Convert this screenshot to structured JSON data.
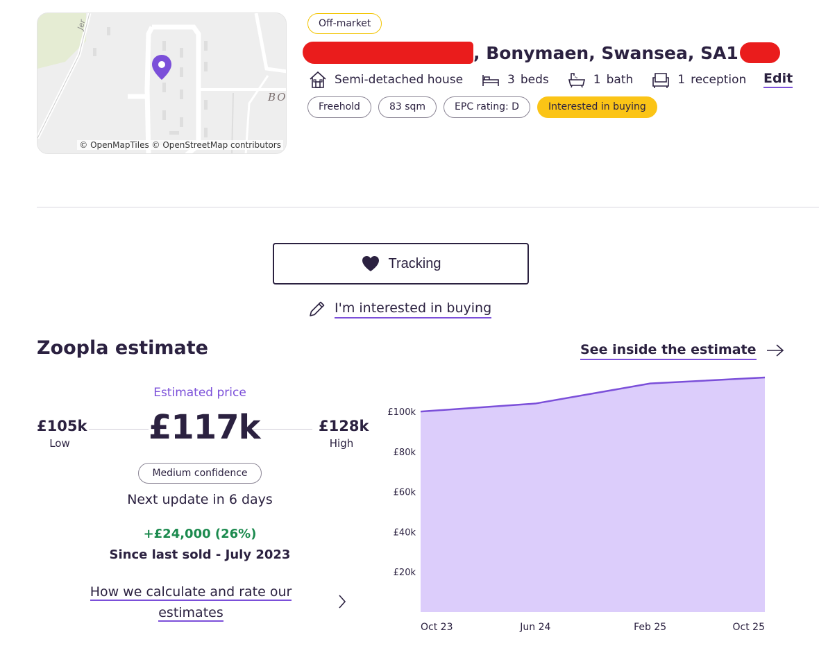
{
  "map": {
    "credit": "© OpenMapTiles © OpenStreetMap contributors",
    "street_label_1": "Jer",
    "street_label_2": "BOI",
    "pin_icon": "map-pin-icon",
    "pin_color": "#7b4fd9"
  },
  "status_badge": "Off-market",
  "address": {
    "visible_text": ", Bonymaen, Swansea, SA1",
    "redacted": true
  },
  "features": [
    {
      "icon": "house-icon",
      "num": "",
      "label": "Semi-detached house"
    },
    {
      "icon": "bed-icon",
      "num": "3",
      "label": "beds"
    },
    {
      "icon": "bath-icon",
      "num": "1",
      "label": "bath"
    },
    {
      "icon": "sofa-icon",
      "num": "1",
      "label": "reception"
    }
  ],
  "edit_label": "Edit",
  "tags": [
    "Freehold",
    "83 sqm",
    "EPC rating: D",
    "Interested in buying"
  ],
  "tracking_label": "Tracking",
  "interested_label": "I'm interested in buying",
  "estimate": {
    "title": "Zoopla estimate",
    "see_inside": "See inside the estimate",
    "estimated_label": "Estimated price",
    "price": "£117k",
    "low_value": "£105k",
    "low_label": "Low",
    "high_value": "£128k",
    "high_label": "High",
    "confidence": "Medium confidence",
    "next_update": "Next update in 6 days",
    "change": "+£24,000 (26%)",
    "since": "Since last sold - July 2023",
    "how_calc": "How we calculate and rate our estimates"
  },
  "colors": {
    "accent": "#7b4fd9",
    "area_fill": "#dccdfb",
    "badge_yellow": "#fbc416",
    "positive": "#1b8a4e",
    "text": "#2b2140"
  },
  "chart_data": {
    "type": "area",
    "x": [
      "Oct 23",
      "Jun 24",
      "Feb 25",
      "Oct 25"
    ],
    "values": [
      100000,
      104000,
      114000,
      117000
    ],
    "ytick_labels": [
      "£100k",
      "£80k",
      "£60k",
      "£40k",
      "£20k"
    ],
    "ytick_values": [
      100000,
      80000,
      60000,
      40000,
      20000
    ],
    "ylim": [
      0,
      117000
    ],
    "grid": false
  }
}
